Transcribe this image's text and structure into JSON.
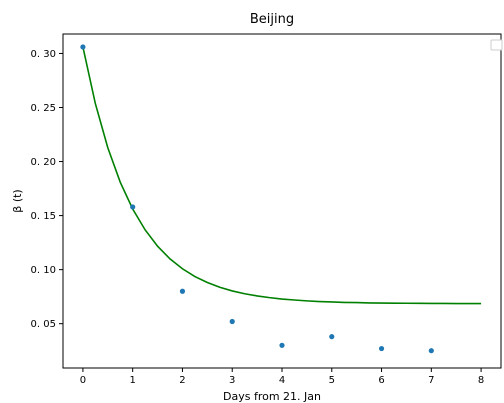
{
  "chart_data": {
    "type": "scatter",
    "title": "Beijing",
    "xlabel": "Days from 21. Jan",
    "ylabel": "β (t)",
    "xlim": [
      -0.4,
      8.4
    ],
    "ylim": [
      0.009,
      0.318
    ],
    "x_ticks": [
      0,
      1,
      2,
      3,
      4,
      5,
      6,
      7,
      8
    ],
    "y_ticks": [
      0.05,
      0.1,
      0.15,
      0.2,
      0.25,
      0.3
    ],
    "y_tick_labels": [
      "0. 05",
      "0. 10",
      "0. 15",
      "0. 20",
      "0. 25",
      "0. 30"
    ],
    "grid": false,
    "legend": "top-right",
    "series": [
      {
        "kind": "scatter",
        "color": "#1f77b4",
        "x": [
          0,
          1,
          2,
          3,
          4,
          5,
          6,
          7
        ],
        "y": [
          0.306,
          0.158,
          0.08,
          0.052,
          0.03,
          0.038,
          0.027,
          0.025
        ]
      },
      {
        "kind": "line",
        "color": "#008000",
        "x": [
          0,
          0.25,
          0.5,
          0.75,
          1,
          1.25,
          1.5,
          1.75,
          2,
          2.25,
          2.5,
          2.75,
          3,
          3.25,
          3.5,
          3.75,
          4,
          4.25,
          4.5,
          4.75,
          5,
          5.25,
          5.5,
          5.75,
          6,
          6.25,
          6.5,
          6.75,
          7,
          7.25,
          7.5,
          7.75,
          8
        ],
        "y": [
          0.306,
          0.2536,
          0.2128,
          0.1809,
          0.1561,
          0.1368,
          0.1217,
          0.1099,
          0.1008,
          0.0936,
          0.0881,
          0.0837,
          0.0803,
          0.0777,
          0.0757,
          0.0741,
          0.0728,
          0.0719,
          0.0711,
          0.0705,
          0.0701,
          0.0697,
          0.0695,
          0.0692,
          0.0691,
          0.069,
          0.0689,
          0.0688,
          0.0687,
          0.0687,
          0.0686,
          0.0686,
          0.0686
        ]
      }
    ]
  }
}
